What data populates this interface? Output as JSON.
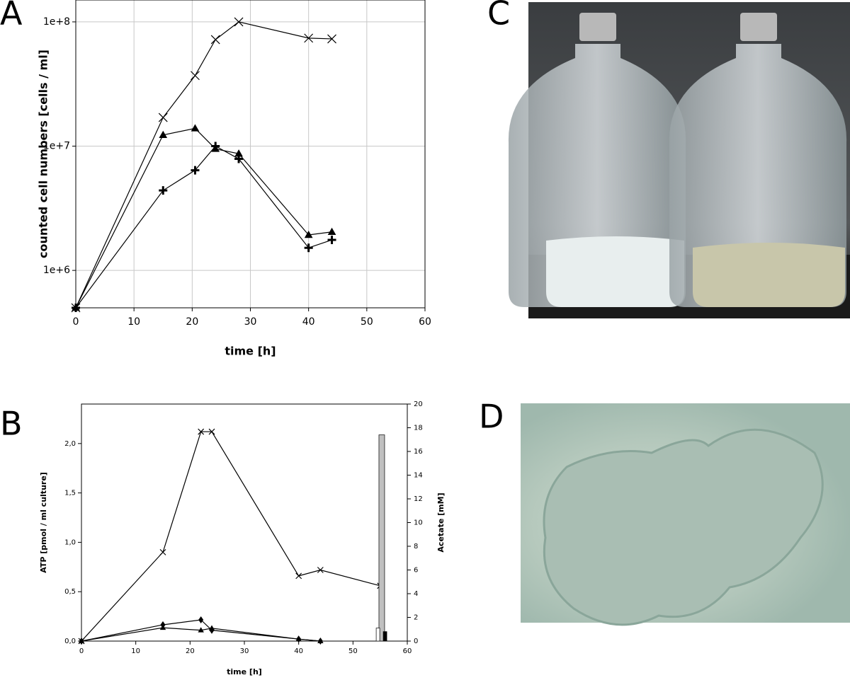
{
  "panels": [
    "A",
    "B",
    "C",
    "D"
  ],
  "chart_data": [
    {
      "type": "line",
      "xlabel": "time [h]",
      "ylabel": "counted cell numbers [cells / ml]",
      "log_y": true,
      "grid": true,
      "xlim": [
        0,
        60
      ],
      "xticks": [
        0,
        10,
        20,
        30,
        40,
        50,
        60
      ],
      "ylim": [
        500000,
        150000000
      ],
      "yticks": [
        {
          "value": 1000000,
          "label": "1e+6"
        },
        {
          "value": 10000000,
          "label": "1e+7"
        },
        {
          "value": 100000000,
          "label": "1e+8"
        }
      ],
      "series": [
        {
          "color": "#000000",
          "marker": "x",
          "x": [
            0,
            15,
            20.5,
            24,
            28,
            40,
            44
          ],
          "values": [
            500000,
            17000000,
            37000000,
            72000000,
            100000000,
            74000000,
            73000000
          ]
        },
        {
          "color": "#000000",
          "marker": "triangle",
          "x": [
            0,
            15,
            20.5,
            24,
            28,
            40,
            44
          ],
          "values": [
            500000,
            12300000,
            13900000,
            9500000,
            8700000,
            1930000,
            2040000
          ]
        },
        {
          "color": "#000000",
          "marker": "plus",
          "x": [
            0,
            15,
            20.5,
            24,
            28,
            40,
            44
          ],
          "values": [
            500000,
            4400000,
            6400000,
            10000000,
            7900000,
            1520000,
            1760000
          ]
        }
      ]
    },
    {
      "type": "line",
      "xlabel": "time [h]",
      "ylabel": "ATP [pmol / ml culture]",
      "y2label": "Acetate [mM]",
      "grid": false,
      "xlim": [
        0,
        60
      ],
      "xticks": [
        0,
        10,
        20,
        30,
        40,
        50,
        60
      ],
      "ylim": [
        0,
        2.4
      ],
      "yticks": [
        {
          "value": 0,
          "label": "0,0"
        },
        {
          "value": 0.5,
          "label": "0,5"
        },
        {
          "value": 1,
          "label": "1,0"
        },
        {
          "value": 1.5,
          "label": "1,5"
        },
        {
          "value": 2,
          "label": "2,0"
        }
      ],
      "y2lim": [
        0,
        20
      ],
      "y2ticks": [
        0,
        2,
        4,
        6,
        8,
        10,
        12,
        14,
        16,
        18,
        20
      ],
      "series": [
        {
          "color": "#000000",
          "marker": "x",
          "x": [
            0,
            15,
            22,
            24,
            40,
            44,
            55
          ],
          "values": [
            0,
            0.9,
            2.12,
            2.12,
            0.66,
            0.72,
            0.56
          ]
        },
        {
          "color": "#000000",
          "marker": "diamond",
          "x": [
            0,
            15,
            22,
            24,
            40,
            44
          ],
          "values": [
            0,
            0.165,
            0.215,
            0.11,
            0.02,
            0
          ]
        },
        {
          "color": "#000000",
          "marker": "triangle",
          "x": [
            0,
            15,
            22,
            24,
            40,
            44
          ],
          "values": [
            0,
            0.135,
            0.11,
            0.13,
            0.02,
            0
          ]
        },
        {
          "type": "bar",
          "axis": "y2",
          "colors": [
            "#c0c0c0",
            "#ffffff",
            "#000000"
          ],
          "x": [
            55.3,
            54.6,
            55.9
          ],
          "values": [
            17.4,
            1.1,
            0.8
          ]
        }
      ]
    }
  ]
}
